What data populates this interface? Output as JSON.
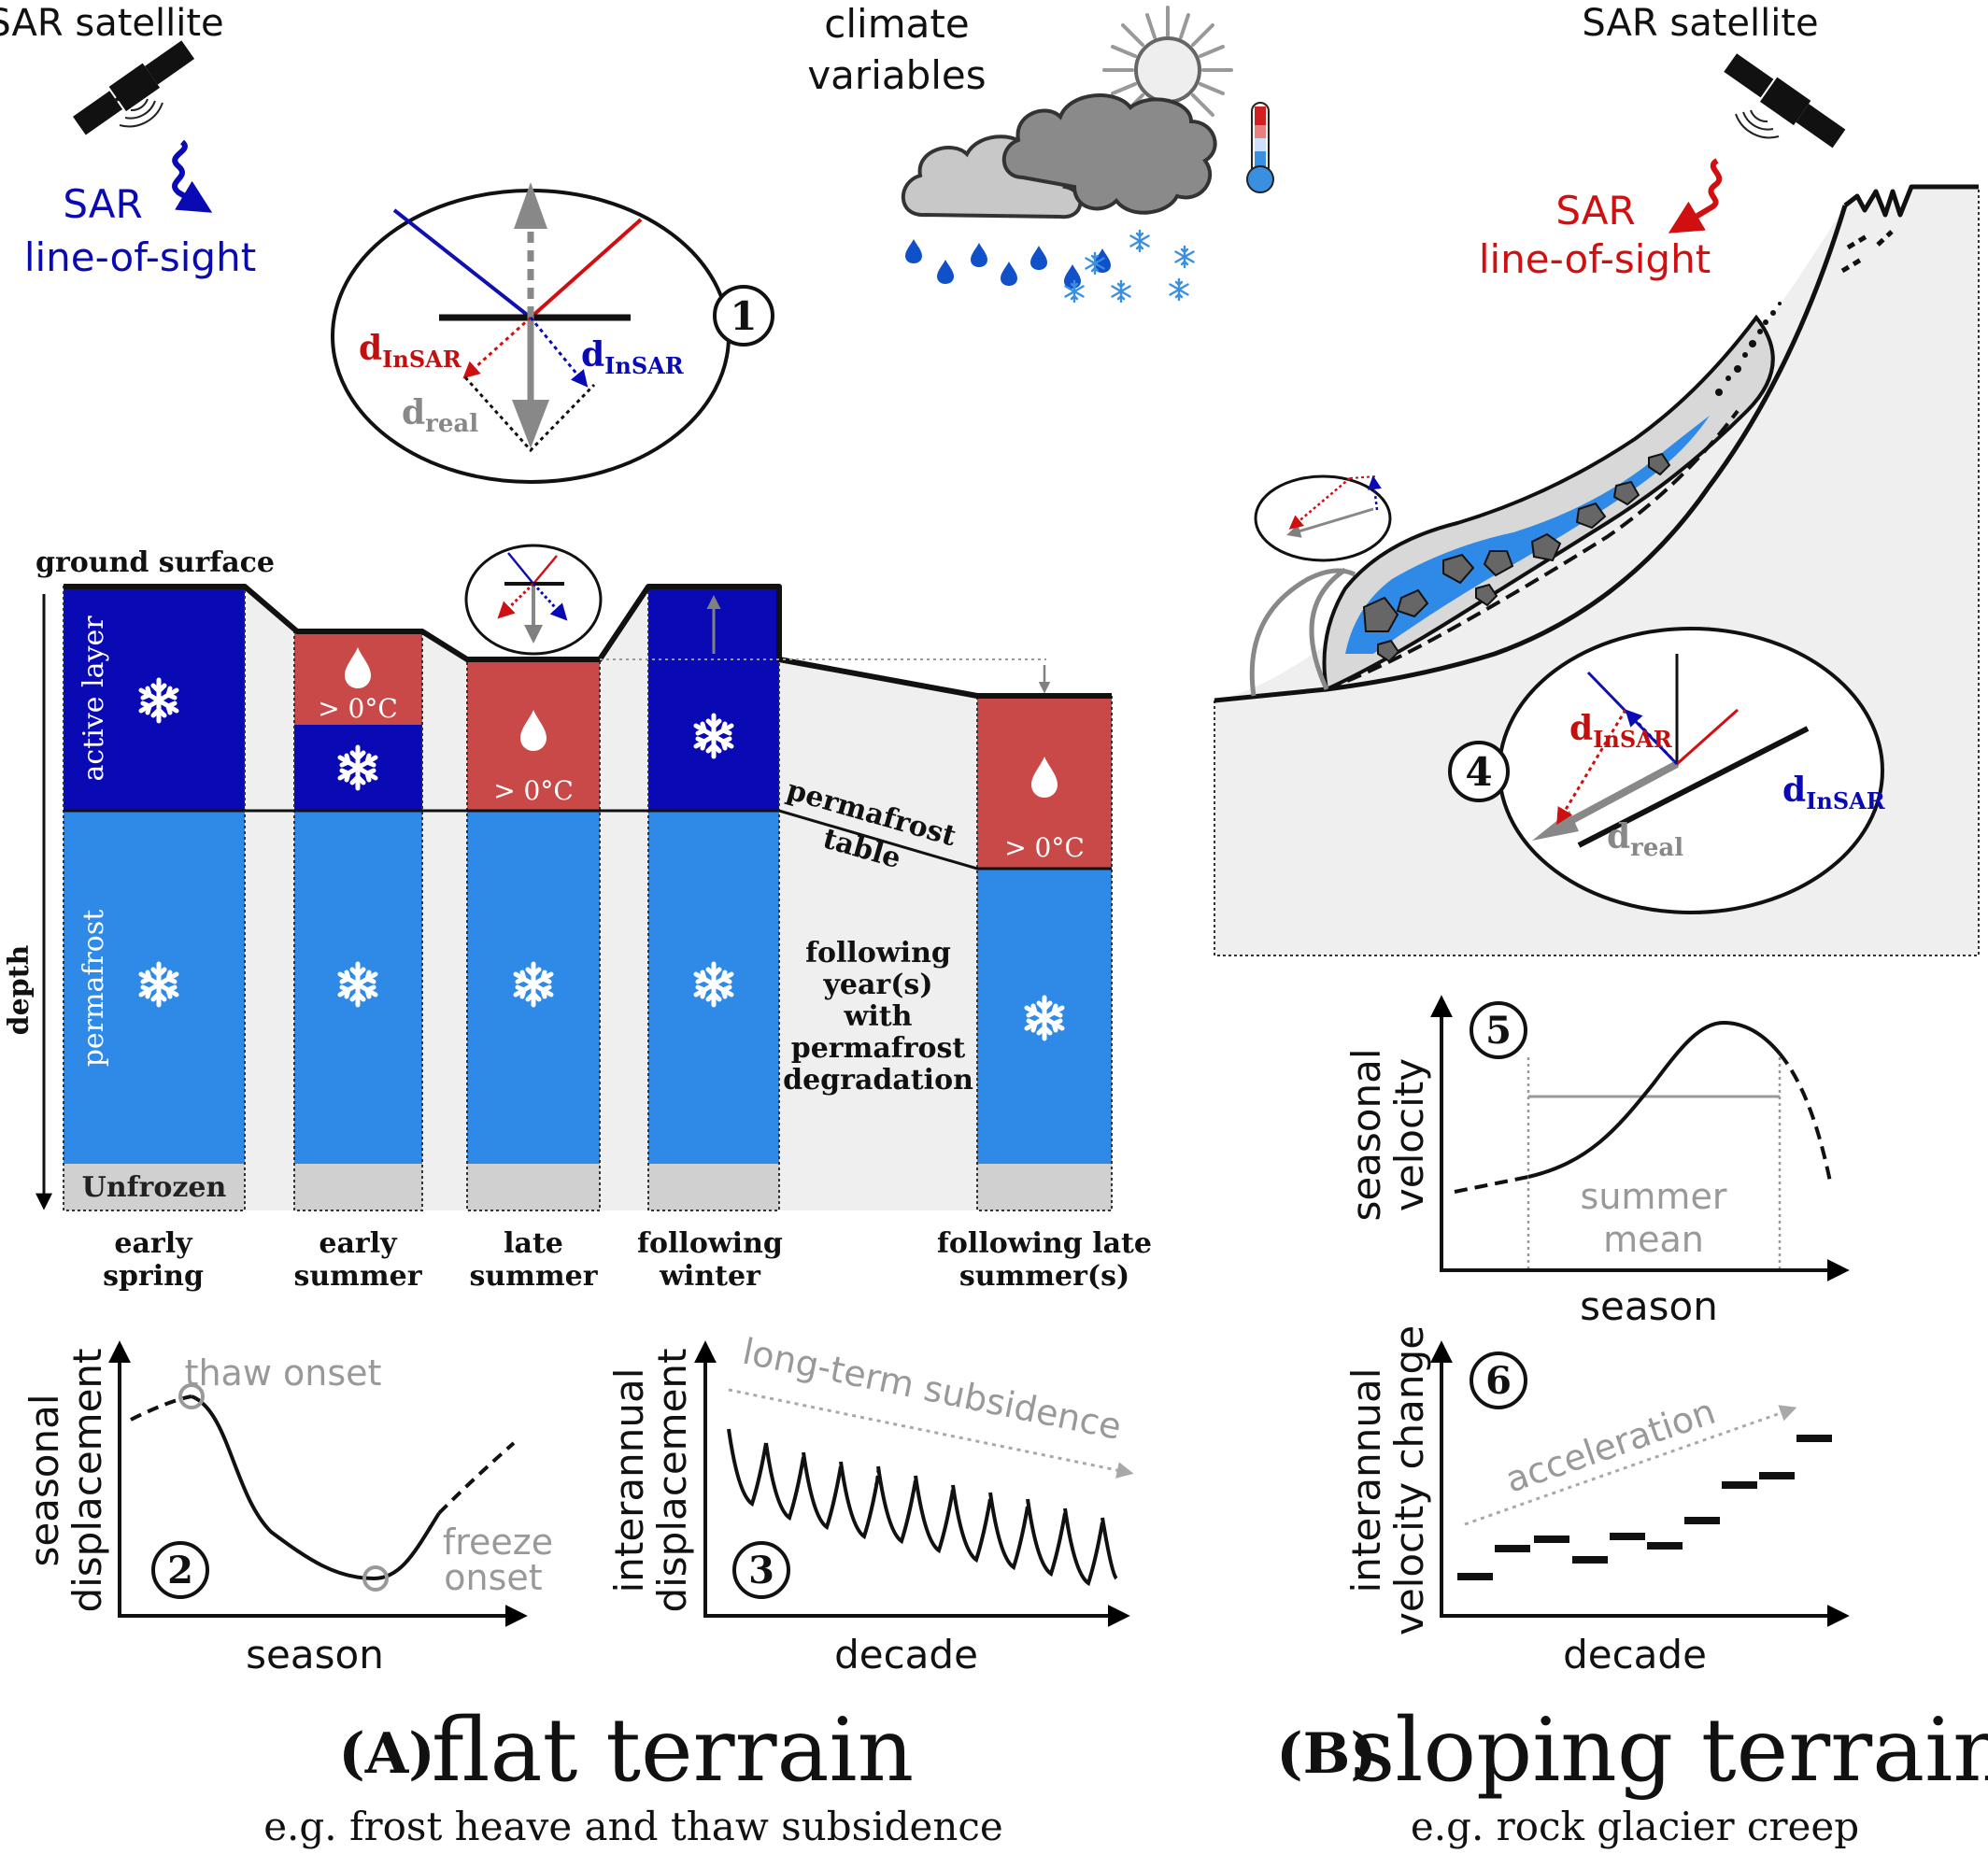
{
  "header": {
    "sat_left": "SAR satellite",
    "los_left_1": "SAR",
    "los_left_2": "line-of-sight",
    "climate_1": "climate",
    "climate_2": "variables",
    "sat_right": "SAR satellite",
    "los_right_1": "SAR",
    "los_right_2": "line-of-sight"
  },
  "inset": {
    "d_insar": "d",
    "d_insar_sub": "InSAR",
    "d_real": "d",
    "d_real_sub": "real"
  },
  "flat": {
    "ground_surface": "ground surface",
    "depth": "depth",
    "active_layer": "active layer",
    "permafrost": "permafrost",
    "unfrozen": "Unfrozen",
    "above_zero": "> 0°C",
    "permafrost_table_1": "permafrost",
    "permafrost_table_2": "table",
    "following_years": [
      "following",
      "year(s)",
      "with",
      "permafrost",
      "degradation"
    ],
    "columns": [
      {
        "line1": "early",
        "line2": "spring"
      },
      {
        "line1": "early",
        "line2": "summer"
      },
      {
        "line1": "late",
        "line2": "summer"
      },
      {
        "line1": "following",
        "line2": "winter"
      },
      {
        "line1": "following late",
        "line2": "summer(s)"
      }
    ]
  },
  "plots": {
    "p2": {
      "number": "2",
      "ylabel_1": "seasonal",
      "ylabel_2": "displacement",
      "xlabel": "season",
      "thaw": "thaw onset",
      "freeze_1": "freeze",
      "freeze_2": "onset"
    },
    "p3": {
      "number": "3",
      "ylabel_1": "interannual",
      "ylabel_2": "displacement",
      "xlabel": "decade",
      "trend": "long-term subsidence"
    },
    "p5": {
      "number": "5",
      "ylabel_1": "seasonal",
      "ylabel_2": "velocity",
      "xlabel": "season",
      "mean_1": "summer",
      "mean_2": "mean"
    },
    "p6": {
      "number": "6",
      "ylabel_1": "interannual",
      "ylabel_2": "velocity change",
      "xlabel": "decade",
      "trend": "acceleration"
    }
  },
  "numbers": {
    "n1": "1",
    "n4": "4"
  },
  "footer": {
    "a_label": "(A)",
    "a_title": "flat terrain",
    "a_sub": "e.g. frost heave and thaw subsidence",
    "b_label": "(B)",
    "b_title": "sloping terrain",
    "b_sub": "e.g. rock glacier creep"
  },
  "colors": {
    "dark_blue": "#0a0ab4",
    "light_blue": "#2e8ae6",
    "red": "#c94848",
    "grey_bg": "#efefef",
    "unfrozen": "#d0d0d0",
    "rock": "#666666"
  }
}
